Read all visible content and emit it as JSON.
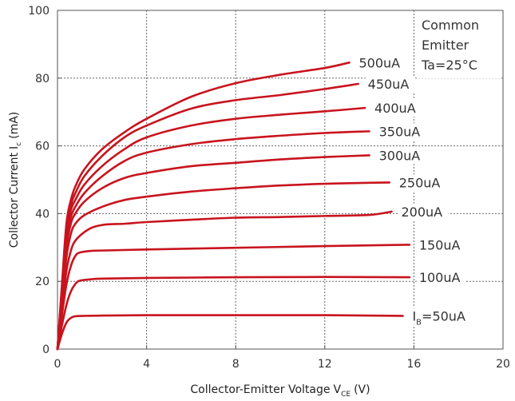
{
  "chart_data": {
    "type": "line",
    "xlabel": "Collector-Emitter Voltage",
    "xlabel_sub": "CE",
    "xlabel_main": "V",
    "xlabel_unit": "(V)",
    "ylabel": "Collector Current",
    "ylabel_main": "I",
    "ylabel_sub": "c",
    "ylabel_unit": "(mA)",
    "xlim": [
      0,
      20
    ],
    "ylim": [
      0,
      100
    ],
    "xticks": [
      "0",
      "4",
      "8",
      "12",
      "16",
      "20"
    ],
    "yticks": [
      "0",
      "20",
      "40",
      "60",
      "80",
      "100"
    ],
    "grid": "dotted",
    "line_color": "#c8141e",
    "annotation": [
      "Common",
      "Emitter",
      "Ta=25°C"
    ],
    "series": [
      {
        "label": "I",
        "label_sub": "B",
        "label_rest": "=50uA",
        "points": [
          [
            0,
            0
          ],
          [
            0.2,
            4.5
          ],
          [
            0.4,
            7.8
          ],
          [
            0.6,
            9.2
          ],
          [
            0.8,
            9.7
          ],
          [
            1.2,
            9.8
          ],
          [
            2,
            9.9
          ],
          [
            4,
            10
          ],
          [
            8,
            10
          ],
          [
            12,
            10
          ],
          [
            15.5,
            9.8
          ]
        ]
      },
      {
        "label": "100uA",
        "points": [
          [
            0,
            0
          ],
          [
            0.2,
            7
          ],
          [
            0.4,
            13
          ],
          [
            0.6,
            17
          ],
          [
            0.8,
            19.2
          ],
          [
            1,
            20.2
          ],
          [
            1.5,
            20.6
          ],
          [
            2,
            20.8
          ],
          [
            4,
            21
          ],
          [
            8,
            21.2
          ],
          [
            12,
            21.3
          ],
          [
            15.8,
            21.2
          ]
        ]
      },
      {
        "label": "150uA",
        "points": [
          [
            0,
            0
          ],
          [
            0.2,
            10
          ],
          [
            0.4,
            19
          ],
          [
            0.6,
            24.5
          ],
          [
            0.8,
            27.5
          ],
          [
            1,
            28.5
          ],
          [
            1.5,
            29
          ],
          [
            2,
            29.1
          ],
          [
            4,
            29.4
          ],
          [
            8,
            29.9
          ],
          [
            12,
            30.4
          ],
          [
            15.8,
            30.8
          ]
        ]
      },
      {
        "label": "200uA",
        "points": [
          [
            0,
            0
          ],
          [
            0.2,
            12
          ],
          [
            0.4,
            23
          ],
          [
            0.6,
            29
          ],
          [
            0.8,
            32
          ],
          [
            1.2,
            34.5
          ],
          [
            1.6,
            36
          ],
          [
            2.2,
            36.8
          ],
          [
            3,
            37
          ],
          [
            4,
            37.5
          ],
          [
            6,
            38.2
          ],
          [
            8,
            38.8
          ],
          [
            10,
            39
          ],
          [
            12,
            39.3
          ],
          [
            14,
            39.6
          ],
          [
            15,
            40.6
          ]
        ]
      },
      {
        "label": "250uA",
        "points": [
          [
            0,
            0
          ],
          [
            0.2,
            14
          ],
          [
            0.4,
            27
          ],
          [
            0.6,
            34
          ],
          [
            0.8,
            37
          ],
          [
            1.2,
            39.5
          ],
          [
            2,
            42
          ],
          [
            3,
            44
          ],
          [
            4,
            45
          ],
          [
            6,
            46.5
          ],
          [
            8,
            47.5
          ],
          [
            10,
            48.3
          ],
          [
            12,
            48.8
          ],
          [
            14,
            49.1
          ],
          [
            14.9,
            49.2
          ]
        ]
      },
      {
        "label": "300uA",
        "points": [
          [
            0,
            0
          ],
          [
            0.2,
            15
          ],
          [
            0.4,
            30
          ],
          [
            0.6,
            37
          ],
          [
            0.8,
            40
          ],
          [
            1.2,
            43.5
          ],
          [
            2,
            47.5
          ],
          [
            3,
            50.5
          ],
          [
            4,
            52
          ],
          [
            6,
            54
          ],
          [
            8,
            55
          ],
          [
            10,
            56
          ],
          [
            12,
            56.7
          ],
          [
            14,
            57.2
          ]
        ]
      },
      {
        "label": "350uA",
        "points": [
          [
            0,
            0
          ],
          [
            0.2,
            16
          ],
          [
            0.4,
            32
          ],
          [
            0.6,
            39
          ],
          [
            0.8,
            42
          ],
          [
            1.2,
            46
          ],
          [
            2,
            51
          ],
          [
            3,
            55.5
          ],
          [
            4,
            58
          ],
          [
            6,
            60.5
          ],
          [
            8,
            62
          ],
          [
            10,
            63
          ],
          [
            12,
            63.8
          ],
          [
            14,
            64.3
          ]
        ]
      },
      {
        "label": "400uA",
        "points": [
          [
            0,
            0
          ],
          [
            0.2,
            17
          ],
          [
            0.4,
            34
          ],
          [
            0.6,
            41
          ],
          [
            0.8,
            44
          ],
          [
            1.2,
            48.5
          ],
          [
            2,
            54
          ],
          [
            3,
            59
          ],
          [
            4,
            62.5
          ],
          [
            6,
            66
          ],
          [
            8,
            68
          ],
          [
            10,
            69.2
          ],
          [
            12,
            70.2
          ],
          [
            13.8,
            71.2
          ]
        ]
      },
      {
        "label": "450uA",
        "points": [
          [
            0,
            0
          ],
          [
            0.2,
            18
          ],
          [
            0.4,
            35.5
          ],
          [
            0.6,
            42.5
          ],
          [
            0.8,
            46
          ],
          [
            1.2,
            51
          ],
          [
            2,
            57
          ],
          [
            3,
            62.5
          ],
          [
            4,
            66
          ],
          [
            6,
            71
          ],
          [
            8,
            73.5
          ],
          [
            10,
            75
          ],
          [
            12,
            76.8
          ],
          [
            13.5,
            78.3
          ]
        ]
      },
      {
        "label": "500uA",
        "points": [
          [
            0,
            0
          ],
          [
            0.2,
            19
          ],
          [
            0.4,
            37
          ],
          [
            0.6,
            44
          ],
          [
            0.8,
            48
          ],
          [
            1.2,
            53
          ],
          [
            2,
            59
          ],
          [
            3,
            64
          ],
          [
            4,
            68
          ],
          [
            6,
            74.5
          ],
          [
            8,
            78.5
          ],
          [
            10,
            81
          ],
          [
            12,
            83
          ],
          [
            13.1,
            84.6
          ]
        ]
      }
    ]
  }
}
